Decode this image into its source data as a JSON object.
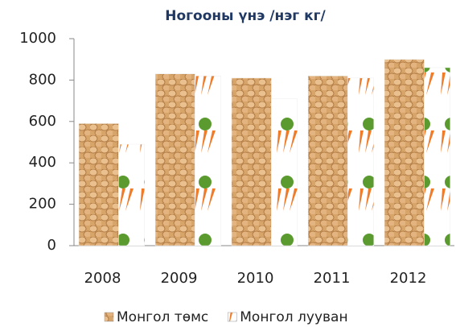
{
  "chart_data": {
    "type": "bar",
    "title": "Ногооны үнэ /нэг кг/",
    "categories": [
      "2008",
      "2009",
      "2010",
      "2011",
      "2012"
    ],
    "series": [
      {
        "name": "Монгол төмс",
        "color": "#d7a46a",
        "values": [
          590,
          830,
          810,
          820,
          900
        ]
      },
      {
        "name": "Монгол лууван",
        "color": "#f07c2a",
        "values": [
          490,
          820,
          710,
          810,
          860
        ]
      }
    ],
    "ylim": [
      0,
      1000
    ],
    "yticks": [
      0,
      200,
      400,
      600,
      800,
      1000
    ],
    "grid": false
  }
}
